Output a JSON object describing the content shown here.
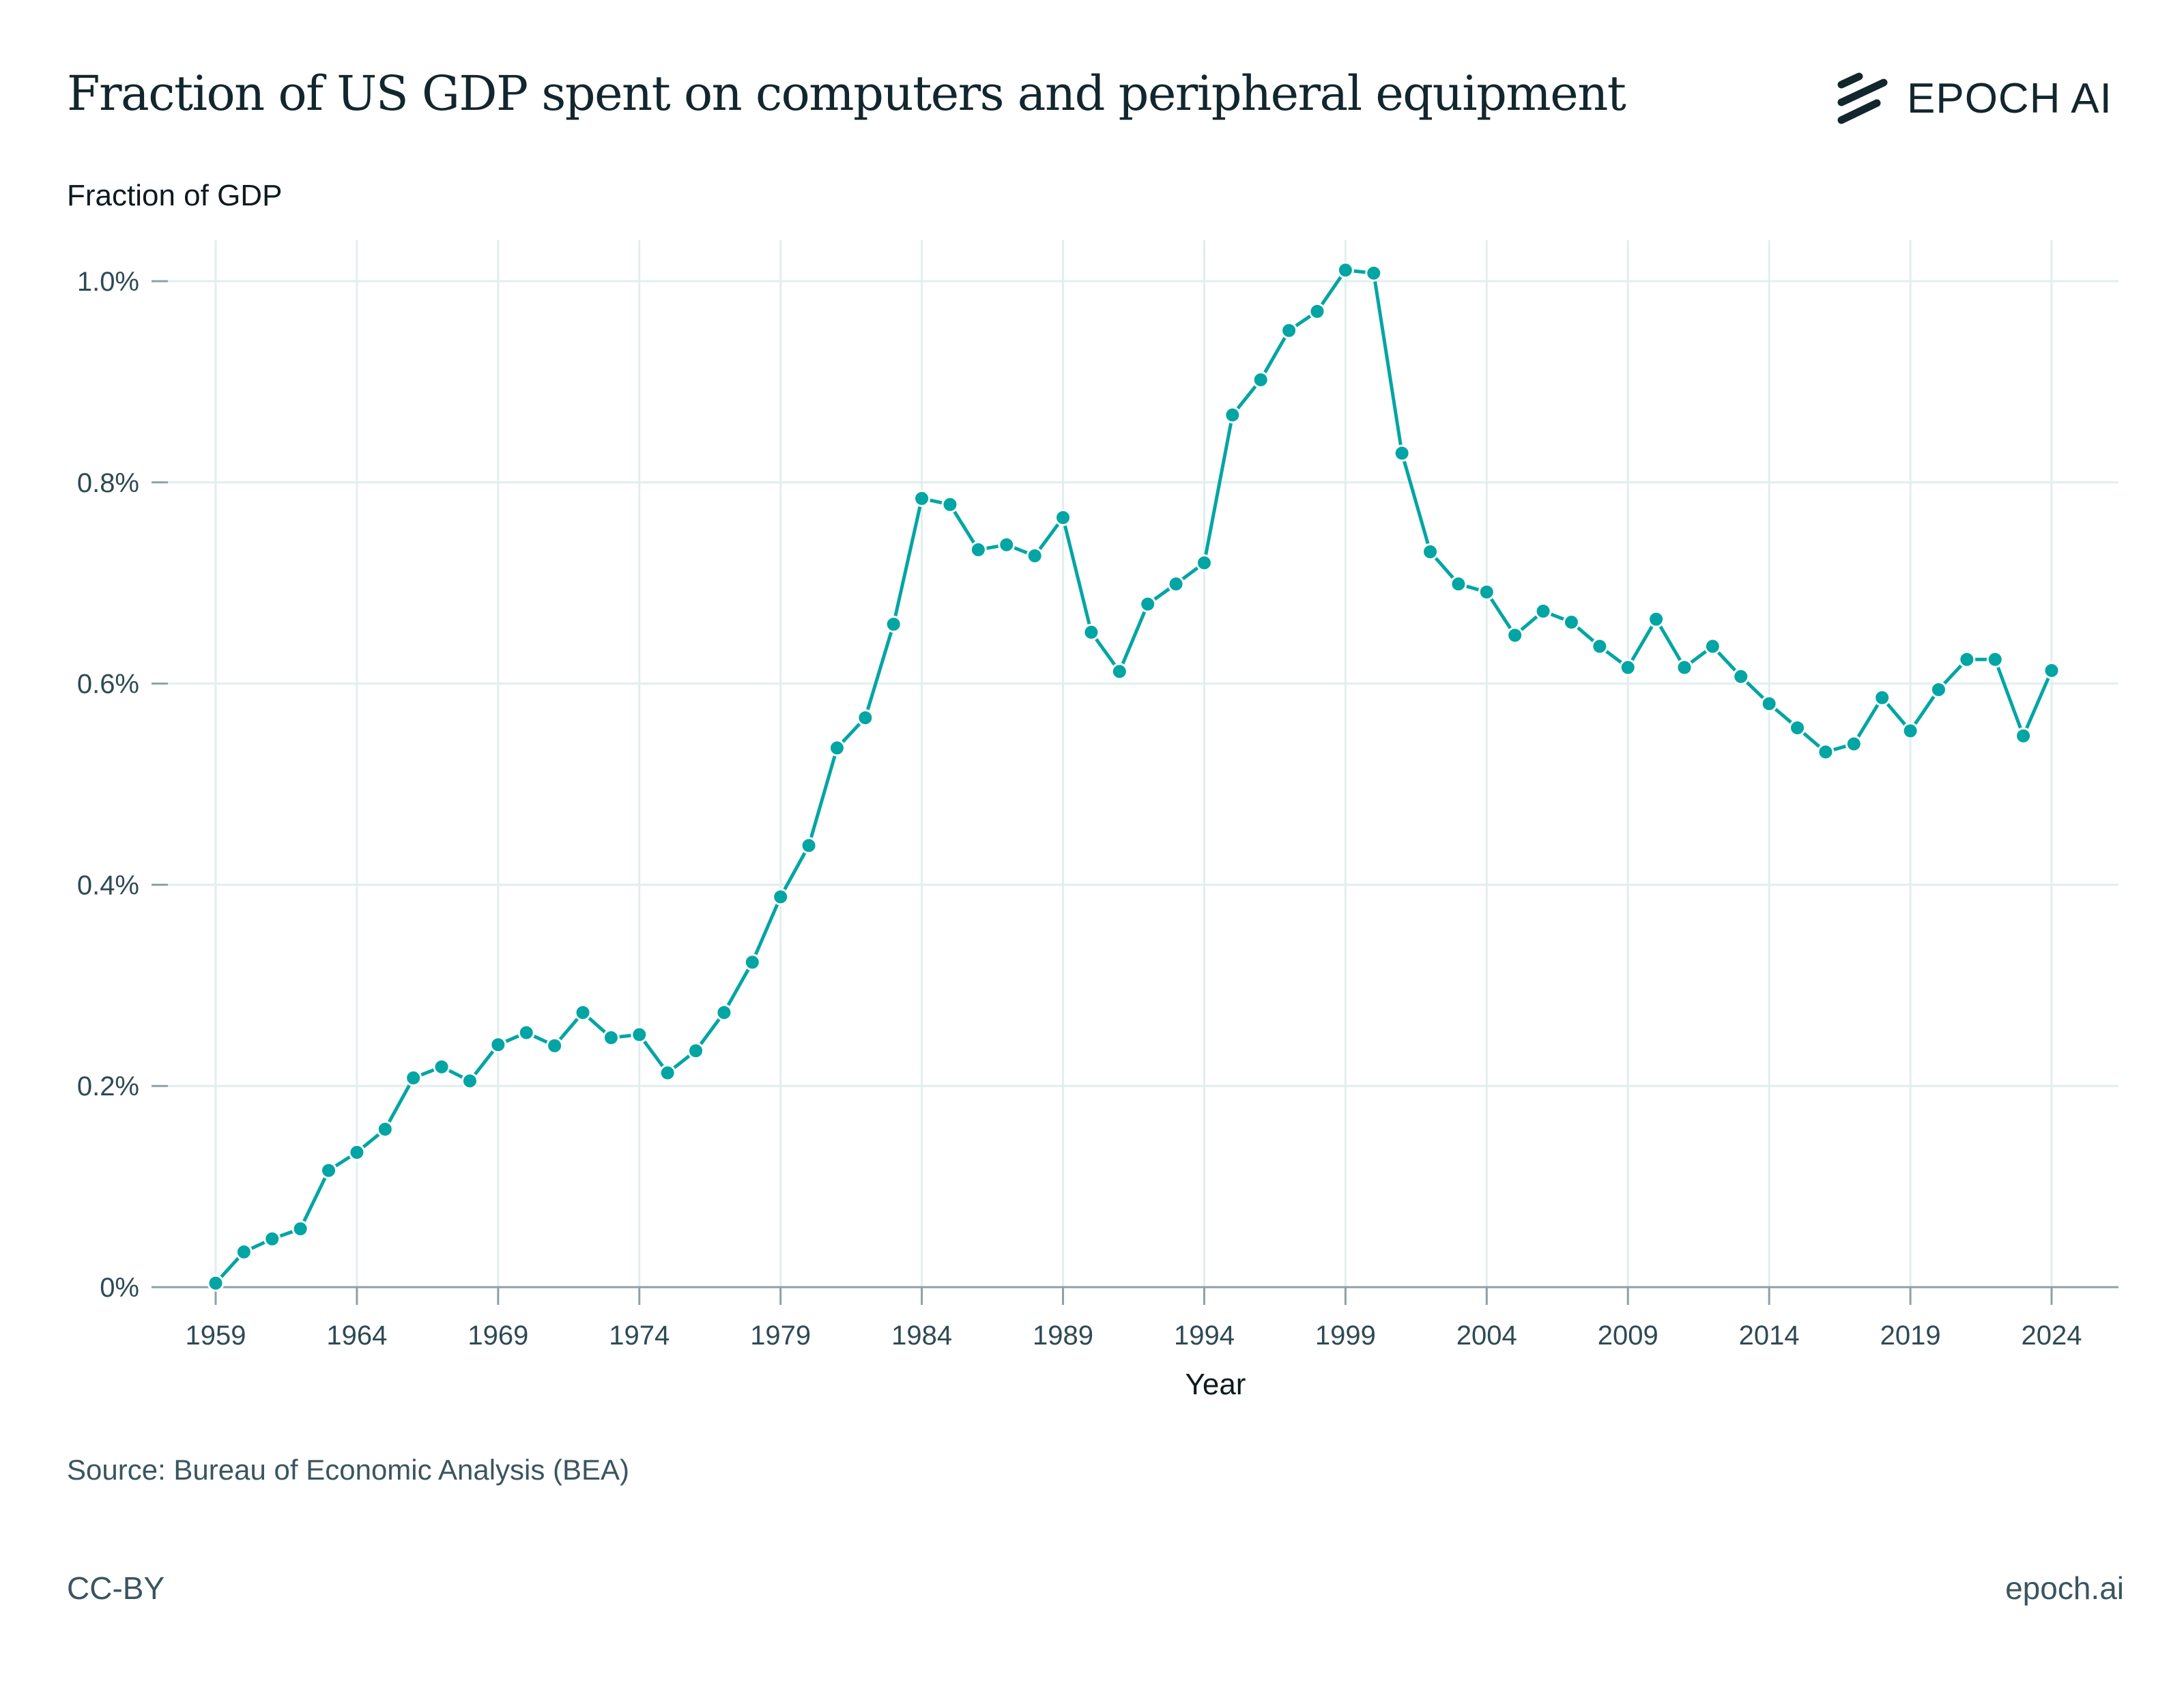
{
  "header": {
    "title": "Fraction of US GDP spent on computers and peripheral equipment",
    "logo_text": "EPOCH AI"
  },
  "footer": {
    "source": "Source: Bureau of Economic Analysis (BEA)",
    "license": "CC-BY",
    "site": "epoch.ai"
  },
  "colors": {
    "series": "#00a5a4",
    "grid": "#e2eeee",
    "axis": "#8fa0a6",
    "text": "#2e4a54"
  },
  "chart_data": {
    "type": "line",
    "title": "Fraction of US GDP spent on computers and peripheral equipment",
    "xlabel": "Year",
    "ylabel": "Fraction of GDP",
    "xlim": [
      1958,
      2026
    ],
    "ylim": [
      0,
      1.04
    ],
    "grid": true,
    "legend": "none",
    "x_ticks": [
      1959,
      1964,
      1969,
      1974,
      1979,
      1984,
      1989,
      1994,
      1999,
      2004,
      2009,
      2014,
      2019,
      2024
    ],
    "x_tick_labels": [
      "1959",
      "1964",
      "1969",
      "1974",
      "1979",
      "1984",
      "1989",
      "1994",
      "1999",
      "2004",
      "2009",
      "2014",
      "2019",
      "2024"
    ],
    "y_ticks": [
      0,
      0.2,
      0.4,
      0.6,
      0.8,
      1.0
    ],
    "y_tick_labels": [
      "0%",
      "0.2%",
      "0.4%",
      "0.6%",
      "0.8%",
      "1.0%"
    ],
    "series": [
      {
        "name": "Fraction of GDP (%)",
        "x": [
          1959,
          1960,
          1961,
          1962,
          1963,
          1964,
          1965,
          1966,
          1967,
          1968,
          1969,
          1970,
          1971,
          1972,
          1973,
          1974,
          1975,
          1976,
          1977,
          1978,
          1979,
          1980,
          1981,
          1982,
          1983,
          1984,
          1985,
          1986,
          1987,
          1988,
          1989,
          1990,
          1991,
          1992,
          1993,
          1994,
          1995,
          1996,
          1997,
          1998,
          1999,
          2000,
          2001,
          2002,
          2003,
          2004,
          2005,
          2006,
          2007,
          2008,
          2009,
          2010,
          2011,
          2012,
          2013,
          2014,
          2015,
          2016,
          2017,
          2018,
          2019,
          2020,
          2021,
          2022,
          2023,
          2024
        ],
        "values": [
          0.004,
          0.035,
          0.048,
          0.058,
          0.116,
          0.134,
          0.157,
          0.208,
          0.219,
          0.205,
          0.241,
          0.253,
          0.24,
          0.273,
          0.248,
          0.251,
          0.213,
          0.235,
          0.273,
          0.323,
          0.388,
          0.439,
          0.536,
          0.566,
          0.659,
          0.784,
          0.778,
          0.733,
          0.738,
          0.727,
          0.765,
          0.651,
          0.612,
          0.679,
          0.699,
          0.72,
          0.867,
          0.902,
          0.951,
          0.97,
          1.011,
          1.008,
          0.829,
          0.731,
          0.699,
          0.691,
          0.648,
          0.672,
          0.661,
          0.637,
          0.616,
          0.664,
          0.616,
          0.637,
          0.607,
          0.58,
          0.556,
          0.532,
          0.54,
          0.586,
          0.553,
          0.594,
          0.624,
          0.624,
          0.548,
          0.613
        ]
      }
    ]
  }
}
